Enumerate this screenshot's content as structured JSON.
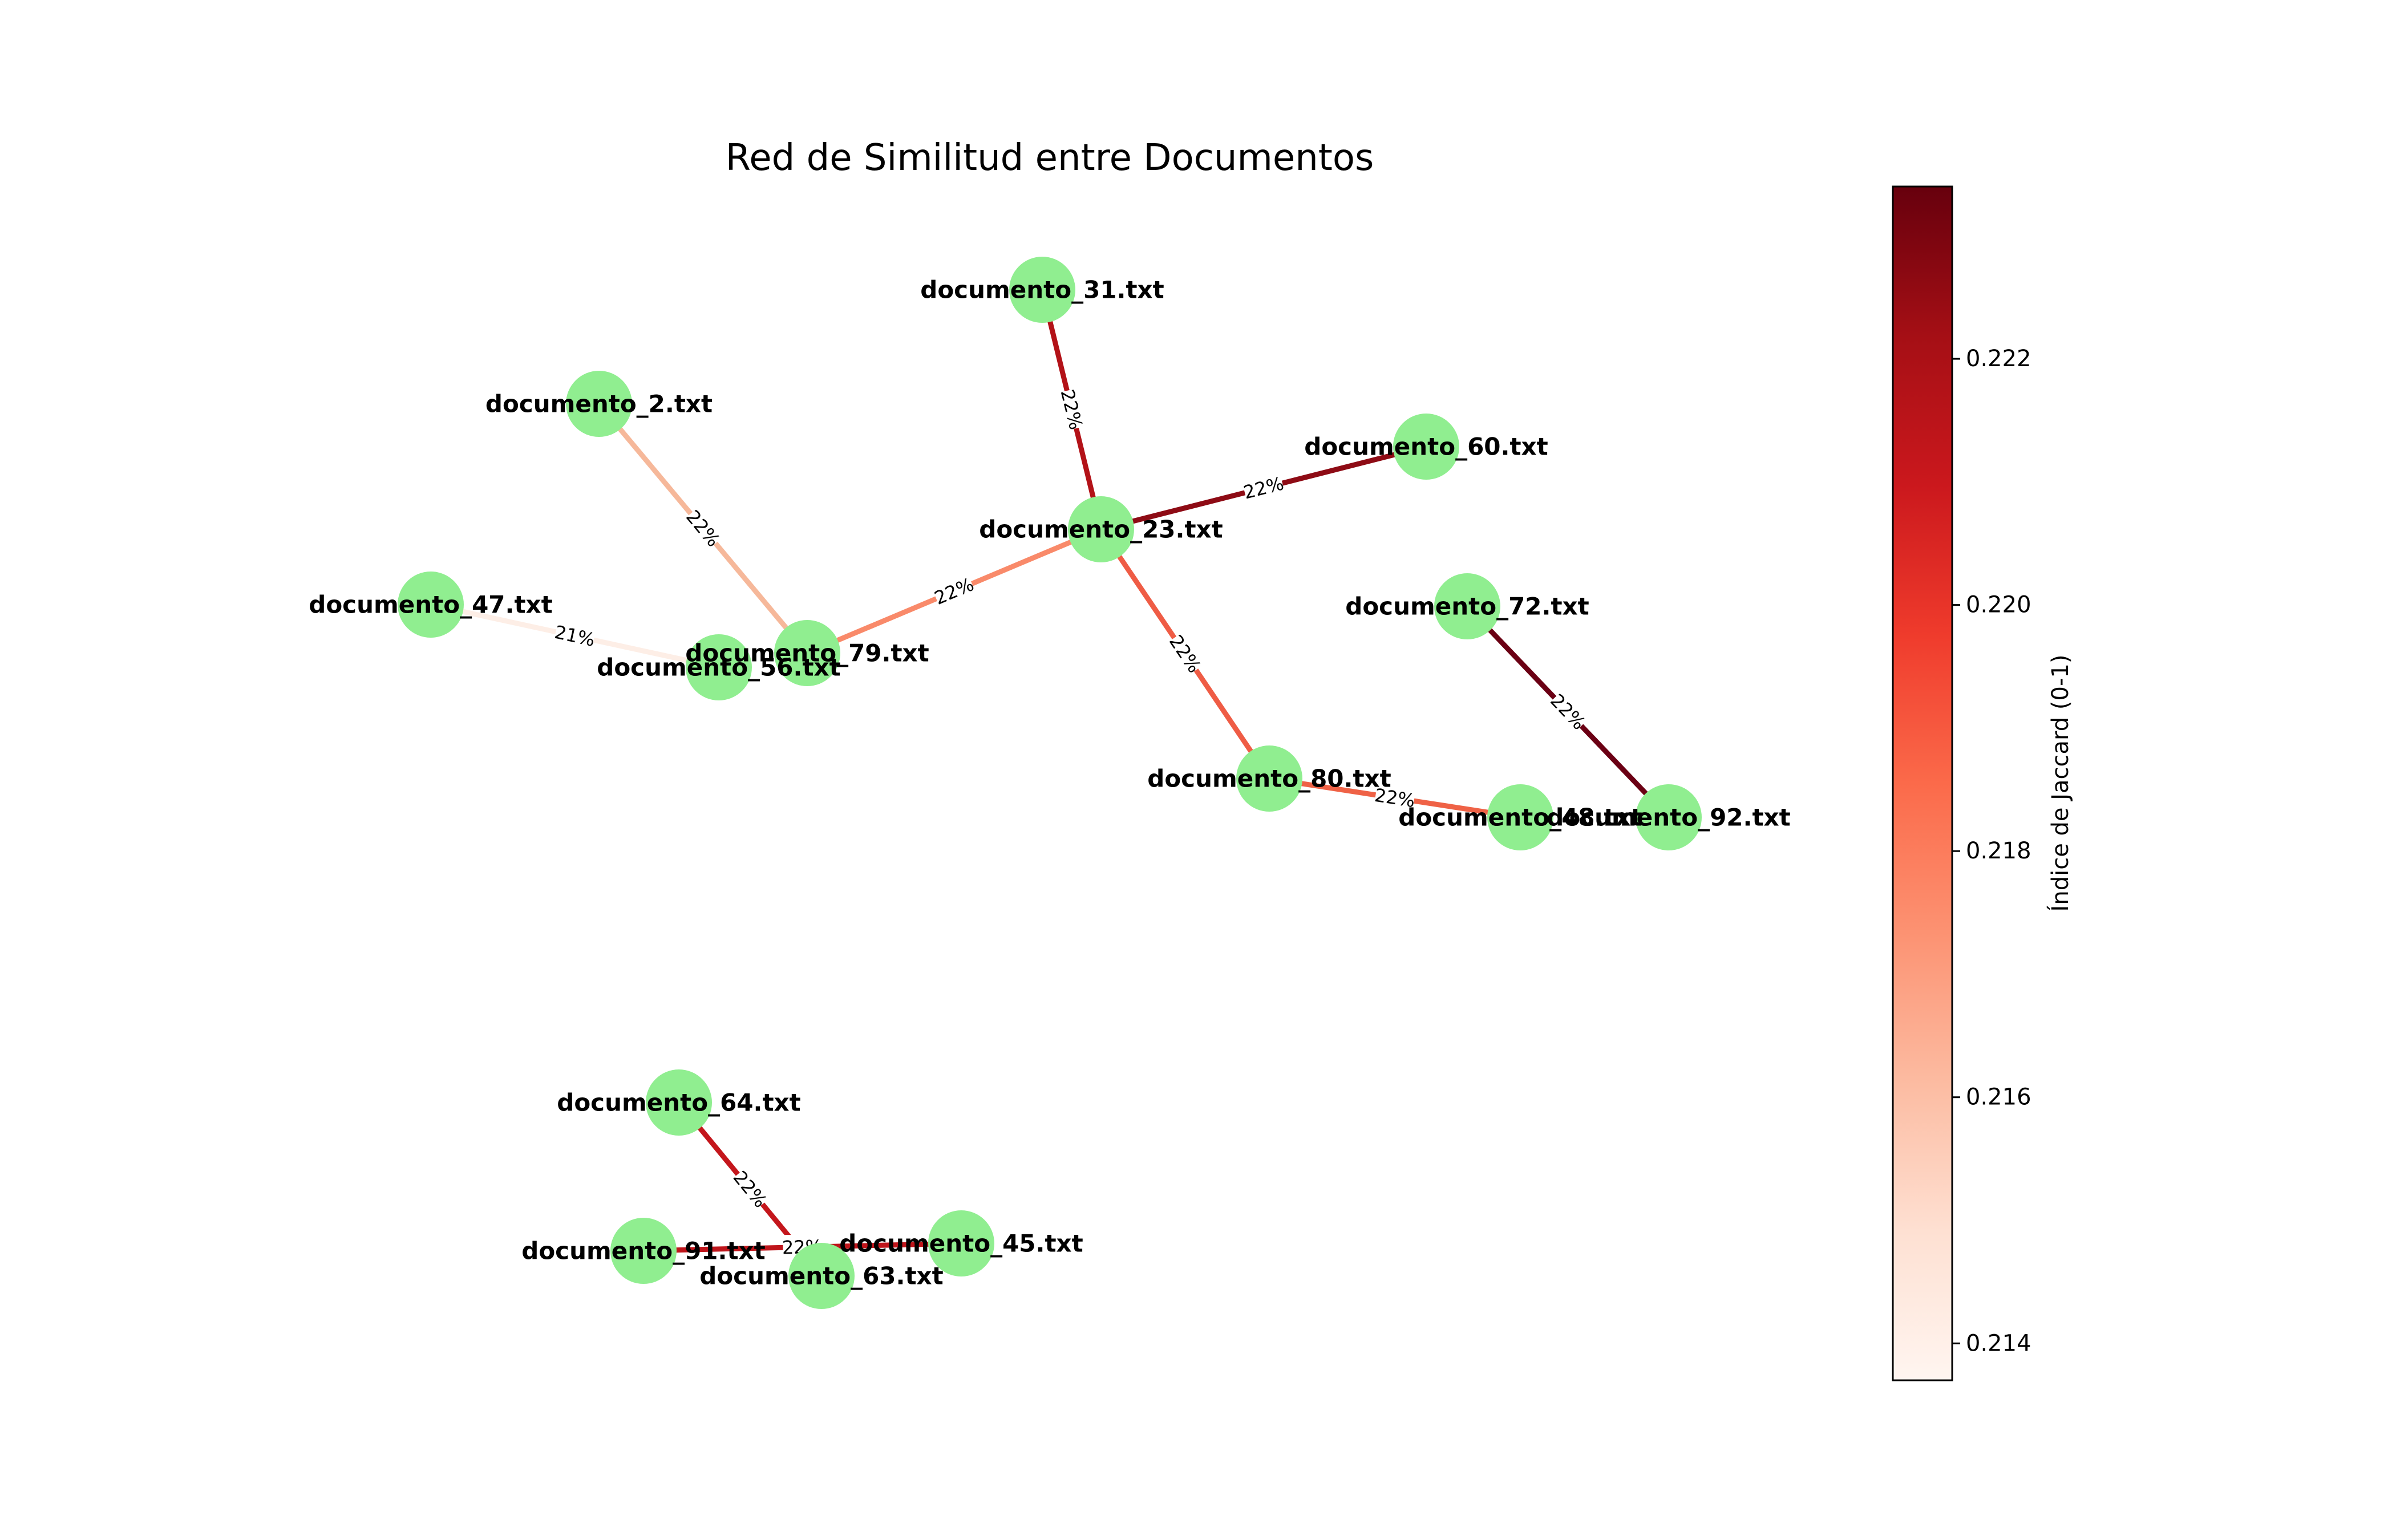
{
  "title": "Red de Similitud entre Documentos",
  "node_color": "#90ee90",
  "nodes": [
    {
      "id": "d31",
      "label": "documento_31.txt"
    },
    {
      "id": "d2",
      "label": "documento_2.txt"
    },
    {
      "id": "d60",
      "label": "documento_60.txt"
    },
    {
      "id": "d23",
      "label": "documento_23.txt"
    },
    {
      "id": "d47",
      "label": "documento_47.txt"
    },
    {
      "id": "d72",
      "label": "documento_72.txt"
    },
    {
      "id": "d79",
      "label": "documento_79.txt"
    },
    {
      "id": "d56",
      "label": "documento_56.txt"
    },
    {
      "id": "d80",
      "label": "documento_80.txt"
    },
    {
      "id": "d48",
      "label": "documento_48.txt"
    },
    {
      "id": "d92",
      "label": "documento_92.txt"
    },
    {
      "id": "d64",
      "label": "documento_64.txt"
    },
    {
      "id": "d45",
      "label": "documento_45.txt"
    },
    {
      "id": "d91",
      "label": "documento_91.txt"
    },
    {
      "id": "d63",
      "label": "documento_63.txt"
    }
  ],
  "edges": [
    {
      "source": "d31",
      "target": "d23",
      "label": "22%",
      "color": "#b31218"
    },
    {
      "source": "d23",
      "target": "d60",
      "label": "22%",
      "color": "#8e0b15"
    },
    {
      "source": "d2",
      "target": "d79",
      "label": "22%",
      "color": "#f6b89a"
    },
    {
      "source": "d79",
      "target": "d23",
      "label": "22%",
      "color": "#f98a6a"
    },
    {
      "source": "d47",
      "target": "d56",
      "label": "21%",
      "color": "#fdeee6"
    },
    {
      "source": "d23",
      "target": "d80",
      "label": "22%",
      "color": "#ef5c45"
    },
    {
      "source": "d80",
      "target": "d48",
      "label": "22%",
      "color": "#ef6246"
    },
    {
      "source": "d72",
      "target": "d92",
      "label": "22%",
      "color": "#6b0014"
    },
    {
      "source": "d64",
      "target": "d63",
      "label": "22%",
      "color": "#c4161c"
    },
    {
      "source": "d91",
      "target": "d45",
      "label": "22%",
      "color": "#bf151b"
    }
  ],
  "colorbar": {
    "label": "Índice de Jaccard (0-1)",
    "colormap": "Reds",
    "range": [
      0.2137,
      0.2234
    ],
    "ticks": [
      "0.214",
      "0.216",
      "0.218",
      "0.220",
      "0.222"
    ],
    "tick_values": [
      0.214,
      0.216,
      0.218,
      0.22,
      0.222
    ]
  }
}
